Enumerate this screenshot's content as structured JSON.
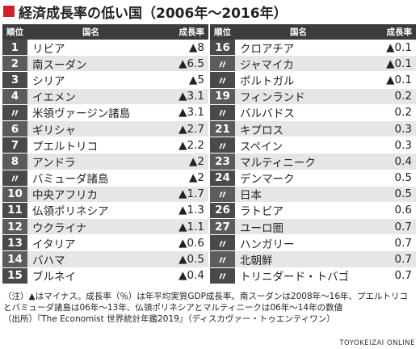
{
  "header": {
    "title": "経済成長率の低い国（2006年〜2016年）"
  },
  "tables": [
    {
      "headers": [
        "順位",
        "国名",
        "成長率"
      ],
      "rows": [
        [
          "1",
          "リビア",
          "▲8"
        ],
        [
          "2",
          "南スーダン",
          "▲6.5"
        ],
        [
          "3",
          "シリア",
          "▲5"
        ],
        [
          "4",
          "イエメン",
          "▲3.1"
        ],
        [
          "〃",
          "米領ヴァージン諸島",
          "▲3.1"
        ],
        [
          "6",
          "ギリシャ",
          "▲2.7"
        ],
        [
          "7",
          "プエルトリコ",
          "▲2.2"
        ],
        [
          "8",
          "アンドラ",
          "▲2"
        ],
        [
          "〃",
          "バミューダ諸島",
          "▲2"
        ],
        [
          "10",
          "中央アフリカ",
          "▲1.7"
        ],
        [
          "11",
          "仏領ポリネシア",
          "▲1.3"
        ],
        [
          "12",
          "ウクライナ",
          "▲1.1"
        ],
        [
          "13",
          "イタリア",
          "▲0.6"
        ],
        [
          "14",
          "バハマ",
          "▲0.5"
        ],
        [
          "15",
          "ブルネイ",
          "▲0.4"
        ]
      ]
    },
    {
      "headers": [
        "順位",
        "国名",
        "成長率"
      ],
      "rows": [
        [
          "16",
          "クロアチア",
          "▲0.1"
        ],
        [
          "〃",
          "ジャマイカ",
          "▲0.1"
        ],
        [
          "〃",
          "ポルトガル",
          "▲0.1"
        ],
        [
          "19",
          "フィンランド",
          "0.2"
        ],
        [
          "〃",
          "バルバドス",
          "0.2"
        ],
        [
          "21",
          "キプロス",
          "0.3"
        ],
        [
          "〃",
          "スペイン",
          "0.3"
        ],
        [
          "23",
          "マルティニーク",
          "0.4"
        ],
        [
          "24",
          "デンマーク",
          "0.5"
        ],
        [
          "〃",
          "日本",
          "0.5"
        ],
        [
          "26",
          "ラトビア",
          "0.6"
        ],
        [
          "27",
          "ユーロ圏",
          "0.7"
        ],
        [
          "〃",
          "ハンガリー",
          "0.7"
        ],
        [
          "〃",
          "北朝鮮",
          "0.7"
        ],
        [
          "〃",
          "トリニダード・トバゴ",
          "0.7"
        ]
      ]
    }
  ],
  "notes": [
    "（注）▲はマイナス。成長率（％）は年平均実質GDP成長率。南スーダンは2008年〜16年、プエルトリコとバミューダ諸島は06年〜13年、仏領ポリネシアとマルティニークは06年〜14年の数値",
    "（出所）『The Economist 世界統計年鑑2019』（ディスカヴァー・トゥエンティワン）"
  ],
  "footer": "TOYOKEIZAI ONLINE"
}
